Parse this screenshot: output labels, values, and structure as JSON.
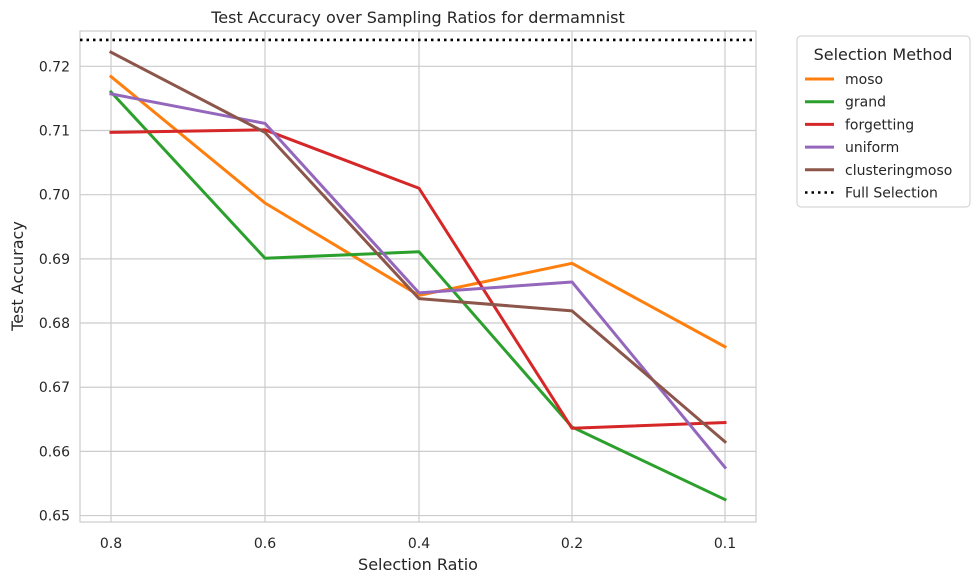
{
  "chart_data": {
    "type": "line",
    "title": "Test Accuracy over Sampling Ratios for dermamnist",
    "xlabel": "Selection Ratio",
    "ylabel": "Test Accuracy",
    "categories": [
      "0.8",
      "0.6",
      "0.4",
      "0.2",
      "0.1"
    ],
    "ylim": [
      0.649,
      0.7255
    ],
    "yticks": [
      "0.65",
      "0.66",
      "0.67",
      "0.68",
      "0.69",
      "0.70",
      "0.71",
      "0.72"
    ],
    "grid": true,
    "legend": {
      "title": "Selection Method",
      "placement": "outside-top-right"
    },
    "series": [
      {
        "name": "moso",
        "color": "#ff7f0e",
        "values": [
          0.7184,
          0.6987,
          0.6843,
          0.6893,
          0.6763
        ]
      },
      {
        "name": "grand",
        "color": "#2ca02c",
        "values": [
          0.716,
          0.6901,
          0.6911,
          0.6638,
          0.6525
        ]
      },
      {
        "name": "forgetting",
        "color": "#d62728",
        "values": [
          0.7097,
          0.7101,
          0.701,
          0.6636,
          0.6645
        ]
      },
      {
        "name": "uniform",
        "color": "#9467bd",
        "values": [
          0.7157,
          0.7111,
          0.6847,
          0.6864,
          0.6575
        ]
      },
      {
        "name": "clusteringmoso",
        "color": "#8c564b",
        "values": [
          0.7222,
          0.7097,
          0.6838,
          0.6819,
          0.6615
        ]
      }
    ],
    "reference_line": {
      "name": "Full Selection",
      "color": "#000000",
      "style": "dotted",
      "value": 0.7241
    }
  }
}
